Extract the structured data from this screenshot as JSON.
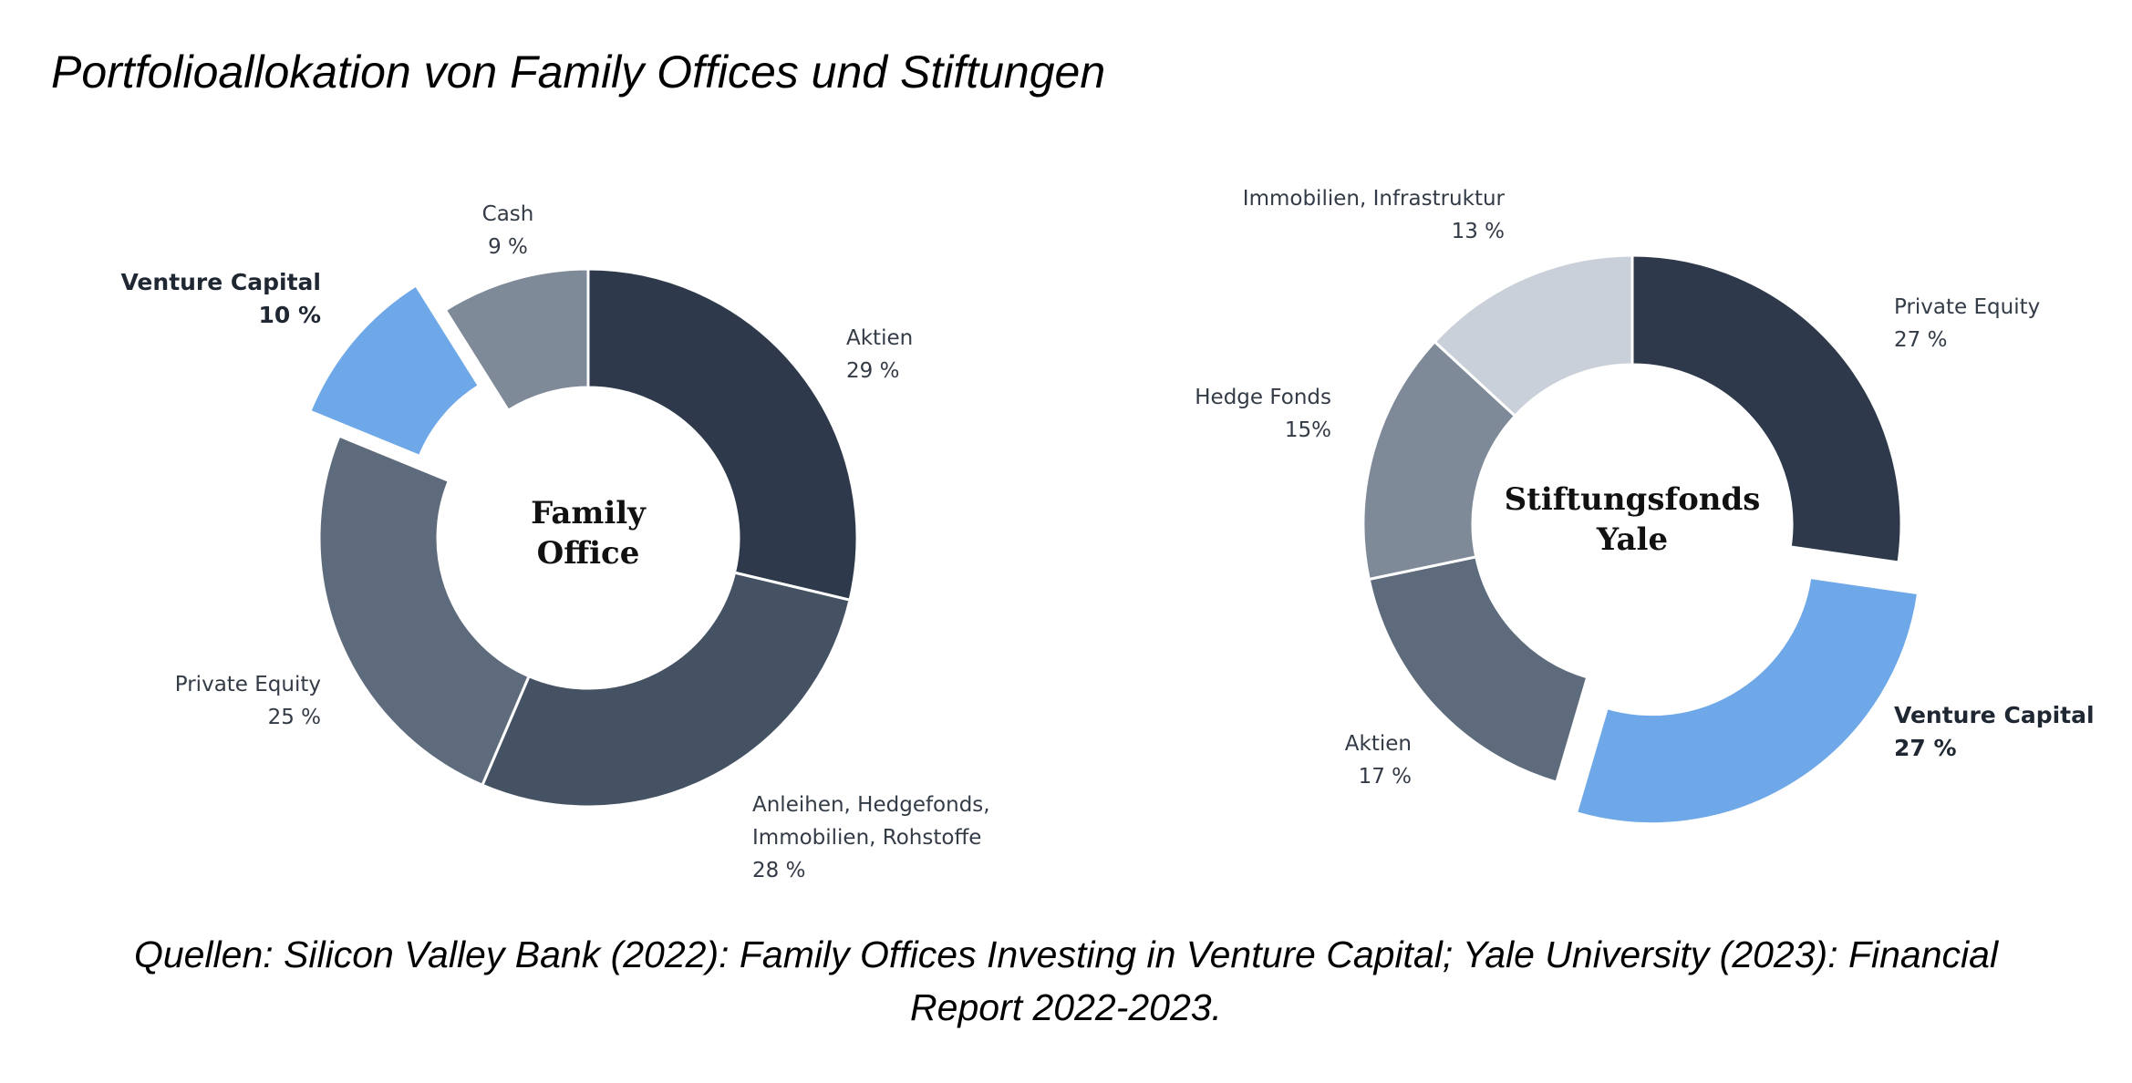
{
  "title": "Portfolioallokation von Family Offices und Stiftungen",
  "source_lines": [
    "Quellen: Silicon Valley Bank (2022): Family Offices Investing in Venture Capital; Yale University (2023): Financial",
    "Report 2022-2023."
  ],
  "colors": {
    "darkest": "#2e3a4b",
    "dark": "#445264",
    "mid": "#5e6b7c",
    "light": "#7f8a99",
    "lightest": "#c9d0d9",
    "highlight": "#6fa8e8"
  },
  "chart_data": [
    {
      "type": "pie",
      "donut": true,
      "center_label": [
        "Family",
        "Office"
      ],
      "slices": [
        {
          "label": [
            "Aktien"
          ],
          "value_label": "29 %",
          "value": 29,
          "color": "#2e3a4b",
          "bold": false,
          "exploded": false
        },
        {
          "label": [
            "Anleihen, Hedgefonds,",
            "Immobilien, Rohstoffe"
          ],
          "value_label": "28 %",
          "value": 28,
          "color": "#445264",
          "bold": false,
          "exploded": false
        },
        {
          "label": [
            "Private Equity"
          ],
          "value_label": "25 %",
          "value": 25,
          "color": "#5e6b7c",
          "bold": false,
          "exploded": false
        },
        {
          "label": [
            "Venture Capital"
          ],
          "value_label": "10 %",
          "value": 10,
          "color": "#6fa8e8",
          "bold": true,
          "exploded": true
        },
        {
          "label": [
            "Cash"
          ],
          "value_label": "9 %",
          "value": 9,
          "color": "#7f8a99",
          "bold": false,
          "exploded": false
        }
      ]
    },
    {
      "type": "pie",
      "donut": true,
      "center_label": [
        "Stiftungsfonds",
        "Yale"
      ],
      "slices": [
        {
          "label": [
            "Private Equity"
          ],
          "value_label": "27 %",
          "value": 27,
          "color": "#2e3a4b",
          "bold": false,
          "exploded": false
        },
        {
          "label": [
            "Venture Capital"
          ],
          "value_label": "27 %",
          "value": 27,
          "color": "#6fa8e8",
          "bold": true,
          "exploded": true
        },
        {
          "label": [
            "Aktien"
          ],
          "value_label": "17 %",
          "value": 17,
          "color": "#5e6b7c",
          "bold": false,
          "exploded": false
        },
        {
          "label": [
            "Hedge Fonds"
          ],
          "value_label": "15%",
          "value": 15,
          "color": "#7f8a99",
          "bold": false,
          "exploded": false
        },
        {
          "label": [
            "Immobilien, Infrastruktur"
          ],
          "value_label": "13 %",
          "value": 13,
          "color": "#c9d0d9",
          "bold": false,
          "exploded": false
        }
      ]
    }
  ]
}
